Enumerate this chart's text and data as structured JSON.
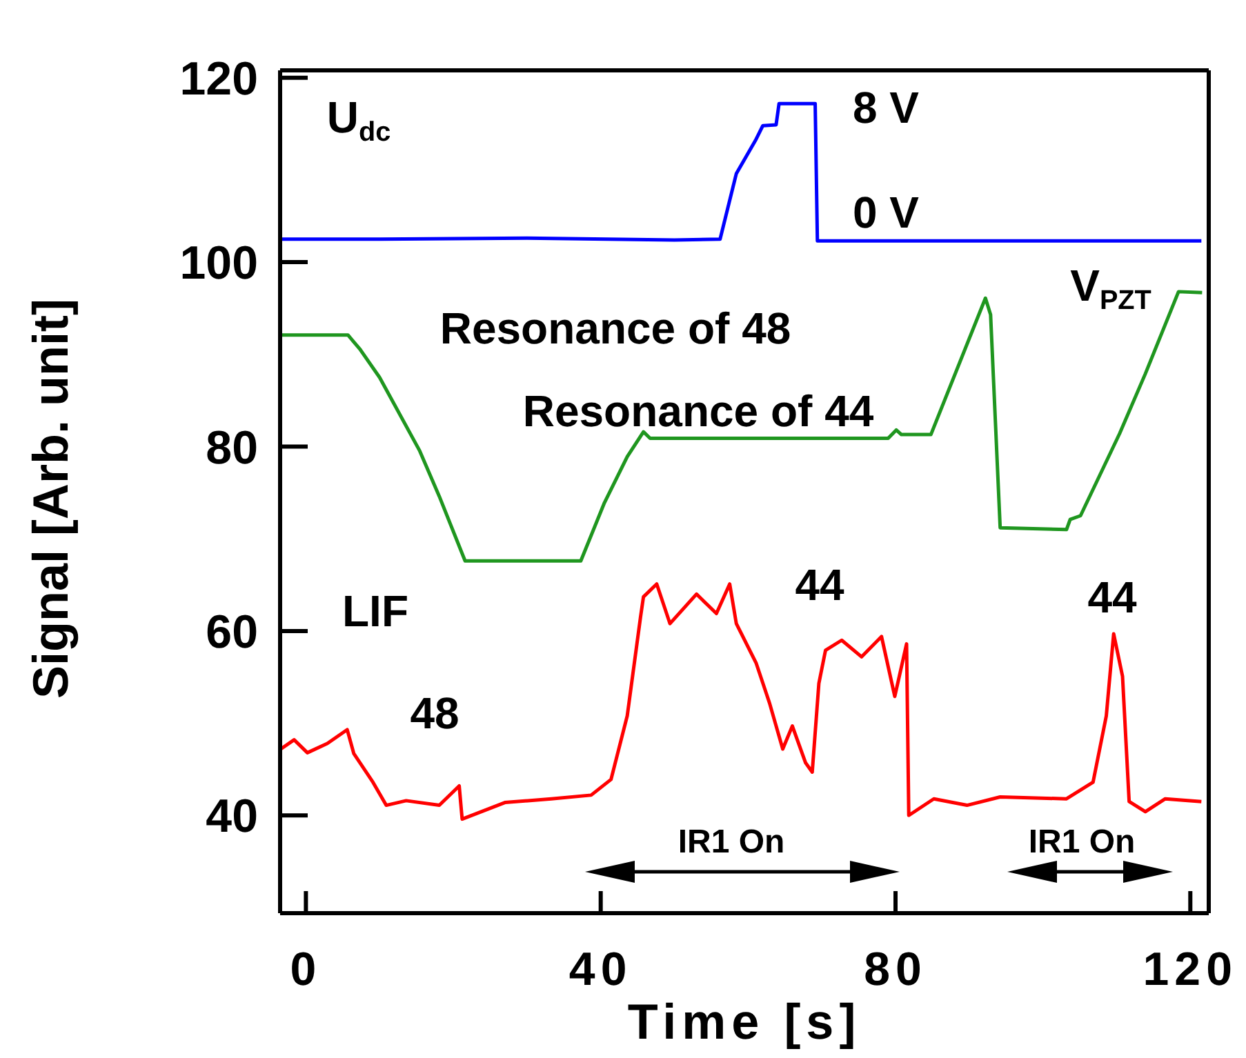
{
  "chart_data": {
    "type": "line",
    "xlabel": "Time [s]",
    "ylabel": "Signal [Arb. unit]",
    "xlim": [
      -3.5,
      122.5
    ],
    "xticks": [
      0,
      40,
      80,
      120
    ],
    "ylim": [
      29.4,
      120.8
    ],
    "yticks": [
      40,
      60,
      80,
      100,
      120
    ],
    "grid": false,
    "legend": false,
    "marker": "none",
    "line_style": "solid",
    "series": [
      {
        "color": "#0000ff",
        "x": [
          -3.4,
          10,
          30,
          50,
          56.2,
          58.4,
          61,
          62,
          63.8,
          64.2,
          69.1,
          69.4,
          90,
          121.5
        ],
        "values": [
          102.5,
          102.5,
          102.6,
          102.4,
          102.5,
          109.6,
          113.2,
          114.8,
          114.9,
          117.2,
          117.2,
          102.3,
          102.3,
          102.3
        ]
      },
      {
        "color": "#1f961f",
        "x": [
          -3.4,
          5.7,
          7.3,
          10,
          15.4,
          18.1,
          21.6,
          37.3,
          40.5,
          43.6,
          45.8,
          46.7,
          79,
          80.1,
          80.8,
          84.8,
          92.2,
          92.9,
          94.2,
          103.2,
          103.7,
          105.1,
          110.4,
          113.9,
          118.4,
          121.6
        ],
        "values": [
          92.1,
          92.1,
          90.6,
          87.5,
          79.6,
          74.6,
          67.6,
          67.6,
          73.9,
          78.9,
          81.6,
          80.9,
          80.9,
          81.8,
          81.3,
          81.3,
          96.1,
          94.3,
          71.2,
          71,
          72.1,
          72.5,
          81.4,
          87.9,
          96.8,
          96.7
        ]
      },
      {
        "color": "#ff0000",
        "x": [
          -3.4,
          -1.6,
          0.2,
          2.9,
          5.6,
          6.5,
          9.1,
          10.9,
          13.6,
          18.1,
          20.8,
          21.2,
          27,
          33.3,
          38.7,
          41.4,
          43.6,
          45.4,
          45.8,
          47.6,
          49.4,
          53,
          55.7,
          57.5,
          58.4,
          61.1,
          62.9,
          64.7,
          66,
          67.8,
          68.7,
          69.6,
          70.5,
          72.7,
          75.4,
          78.1,
          79.9,
          81.5,
          81.8,
          85.2,
          89.7,
          94.2,
          103.2,
          106.8,
          108.6,
          109.6,
          110.8,
          111.7,
          113.9,
          116.6,
          121.5
        ],
        "values": [
          47.2,
          48.2,
          46.8,
          47.8,
          49.3,
          46.7,
          43.6,
          41.1,
          41.6,
          41.1,
          43.2,
          39.6,
          41.4,
          41.8,
          42.2,
          43.9,
          50.8,
          61.5,
          63.7,
          65.1,
          60.8,
          64,
          61.9,
          65.1,
          60.8,
          56.5,
          52.2,
          47.2,
          49.7,
          45.7,
          44.7,
          54.3,
          57.9,
          59,
          57.2,
          59.4,
          52.9,
          58.6,
          40,
          41.8,
          41.1,
          42,
          41.8,
          43.6,
          50.8,
          59.7,
          55.1,
          41.5,
          40.4,
          41.8,
          41.5
        ]
      }
    ],
    "annotations": [
      "U$_{dc}$",
      "8 V",
      "0 V",
      "V$_{PZT}$",
      "Resonance of 48",
      "Resonance of 44",
      "LIF",
      "48",
      "44",
      "44",
      "IR1 On",
      "IR1 On"
    ]
  }
}
